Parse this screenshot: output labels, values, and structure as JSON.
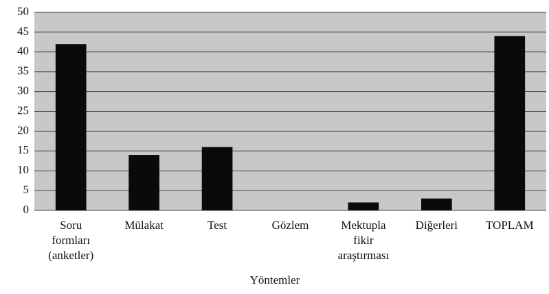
{
  "chart_data": {
    "type": "bar",
    "categories": [
      "Soru formları (anketler)",
      "Mülakat",
      "Test",
      "Gözlem",
      "Mektupla fikir araştırması",
      "Diğerleri",
      "TOPLAM"
    ],
    "values": [
      42,
      14,
      16,
      0,
      2,
      3,
      44
    ],
    "color": "#0a0a0a",
    "x_label": "Yöntemler",
    "ylim": [
      0,
      50
    ],
    "yticks": [
      0,
      5,
      10,
      15,
      20,
      25,
      30,
      35,
      40,
      45,
      50
    ],
    "grid": true,
    "plot_background": "#c8c8c8"
  }
}
